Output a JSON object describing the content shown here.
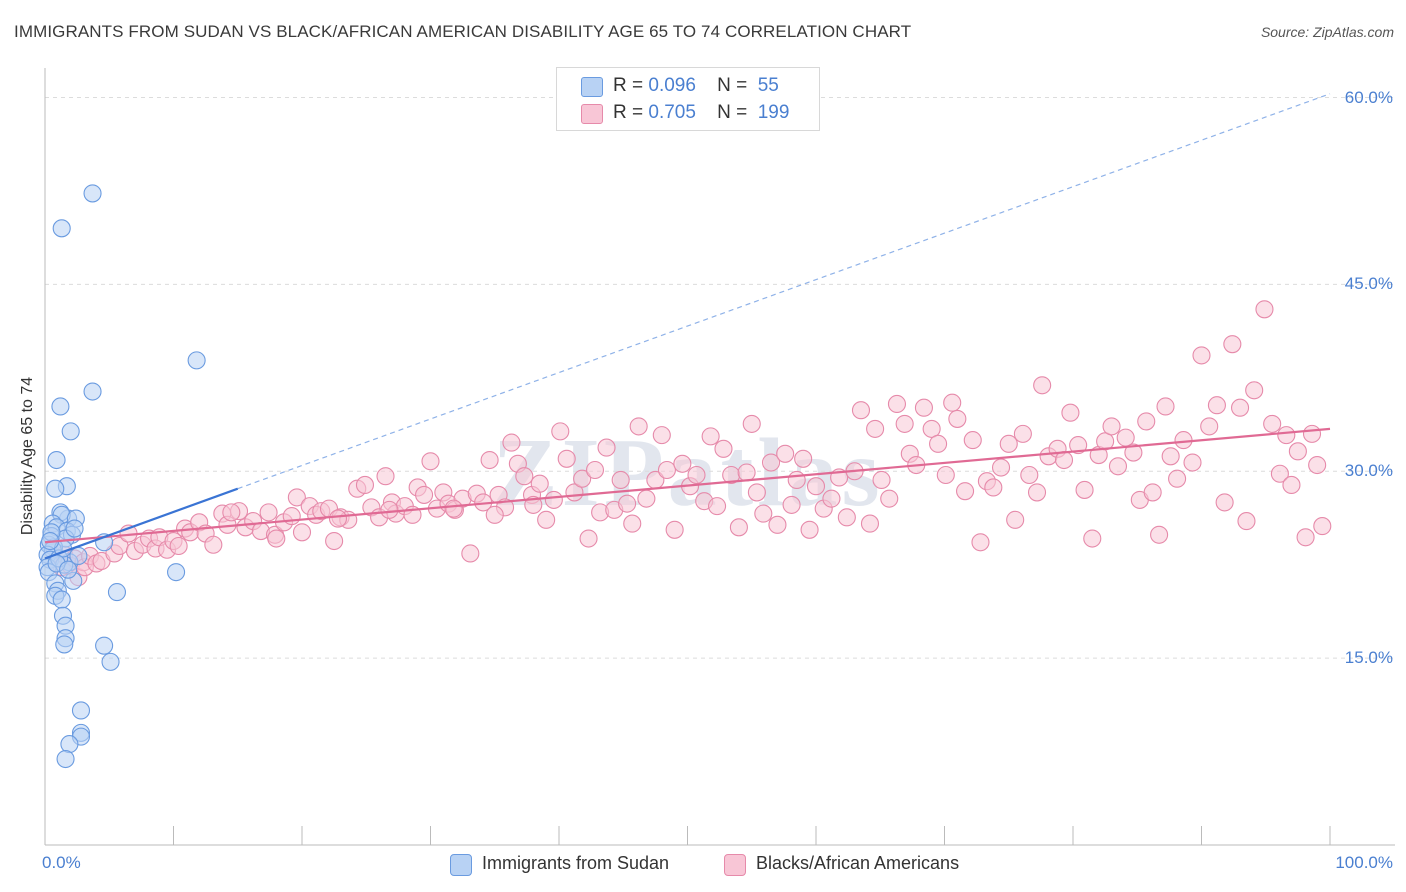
{
  "title": "IMMIGRANTS FROM SUDAN VS BLACK/AFRICAN AMERICAN DISABILITY AGE 65 TO 74 CORRELATION CHART",
  "source": "Source: ZipAtlas.com",
  "watermark": "ZIPatlas",
  "colors": {
    "blue_fill": "#b8d2f4",
    "blue_stroke": "#6a9be0",
    "blue_line": "#3a74d4",
    "pink_fill": "#f8c6d6",
    "pink_stroke": "#e68aaa",
    "pink_line": "#e06a94",
    "tick_text": "#4a7fd0",
    "grid": "#dcdcdc"
  },
  "legend": {
    "rows": [
      {
        "r_label": "R =",
        "r_value": "0.096",
        "n_label": "N =",
        "n_value": "55"
      },
      {
        "r_label": "R =",
        "r_value": "0.705",
        "n_label": "N =",
        "n_value": "199"
      }
    ]
  },
  "chart_data": {
    "type": "scatter",
    "title": "IMMIGRANTS FROM SUDAN VS BLACK/AFRICAN AMERICAN DISABILITY AGE 65 TO 74 CORRELATION CHART",
    "xlabel": "",
    "ylabel": "Disability Age 65 to 74",
    "xlim": [
      0,
      100
    ],
    "ylim": [
      0,
      62
    ],
    "x_tick_labels": [
      "0.0%",
      "100.0%"
    ],
    "y_ticks": [
      15,
      30,
      45,
      60
    ],
    "y_tick_labels": [
      "15.0%",
      "30.0%",
      "45.0%",
      "60.0%"
    ],
    "grid": true,
    "legend_position": "top-center",
    "series": [
      {
        "name": "Immigrants from Sudan",
        "color": "blue",
        "points": [
          [
            3.7,
            52.3
          ],
          [
            1.3,
            49.5
          ],
          [
            11.8,
            38.9
          ],
          [
            3.7,
            36.4
          ],
          [
            1.2,
            35.2
          ],
          [
            2.0,
            33.2
          ],
          [
            0.9,
            30.9
          ],
          [
            1.7,
            28.8
          ],
          [
            0.8,
            28.6
          ],
          [
            1.8,
            26.2
          ],
          [
            1.2,
            26.7
          ],
          [
            1.3,
            26.5
          ],
          [
            2.4,
            26.2
          ],
          [
            0.6,
            25.8
          ],
          [
            0.9,
            25.5
          ],
          [
            1.7,
            25.2
          ],
          [
            2.1,
            24.9
          ],
          [
            0.5,
            24.8
          ],
          [
            1.6,
            24.6
          ],
          [
            4.6,
            24.3
          ],
          [
            0.3,
            24.1
          ],
          [
            0.7,
            23.9
          ],
          [
            0.6,
            23.7
          ],
          [
            0.2,
            23.3
          ],
          [
            0.4,
            22.9
          ],
          [
            1.9,
            22.7
          ],
          [
            1.5,
            22.5
          ],
          [
            0.2,
            22.3
          ],
          [
            0.3,
            21.9
          ],
          [
            10.2,
            21.9
          ],
          [
            2.2,
            21.2
          ],
          [
            0.8,
            21.0
          ],
          [
            1.0,
            20.4
          ],
          [
            5.6,
            20.3
          ],
          [
            0.8,
            20.0
          ],
          [
            1.3,
            19.7
          ],
          [
            1.4,
            18.4
          ],
          [
            1.6,
            17.6
          ],
          [
            1.6,
            16.6
          ],
          [
            1.5,
            16.1
          ],
          [
            4.6,
            16.0
          ],
          [
            5.1,
            14.7
          ],
          [
            2.8,
            10.8
          ],
          [
            2.8,
            9.0
          ],
          [
            2.8,
            8.7
          ],
          [
            1.9,
            8.1
          ],
          [
            1.6,
            6.9
          ],
          [
            1.1,
            23.0
          ],
          [
            0.5,
            25.1
          ],
          [
            1.4,
            23.8
          ],
          [
            2.6,
            23.2
          ],
          [
            0.9,
            22.6
          ],
          [
            0.4,
            24.4
          ],
          [
            1.8,
            22.1
          ],
          [
            2.3,
            25.4
          ]
        ],
        "trend": {
          "x": [
            0,
            15
          ],
          "y": [
            23.0,
            28.6
          ]
        },
        "trend_extended": {
          "x": [
            15,
            100
          ],
          "y": [
            28.6,
            60.3
          ]
        }
      },
      {
        "name": "Blacks/African Americans",
        "color": "pink",
        "points": [
          [
            1.3,
            22.3
          ],
          [
            1.5,
            23.3
          ],
          [
            2.0,
            22.4
          ],
          [
            2.3,
            23.0
          ],
          [
            2.6,
            21.5
          ],
          [
            3.0,
            22.7
          ],
          [
            3.1,
            22.3
          ],
          [
            3.5,
            23.2
          ],
          [
            4.0,
            22.6
          ],
          [
            4.4,
            22.8
          ],
          [
            5.4,
            23.4
          ],
          [
            5.8,
            24.0
          ],
          [
            6.5,
            25.0
          ],
          [
            7.0,
            23.6
          ],
          [
            7.6,
            24.1
          ],
          [
            8.1,
            24.6
          ],
          [
            8.6,
            23.8
          ],
          [
            8.9,
            24.7
          ],
          [
            9.5,
            23.7
          ],
          [
            10.0,
            24.4
          ],
          [
            10.4,
            24.0
          ],
          [
            10.9,
            25.4
          ],
          [
            11.3,
            25.1
          ],
          [
            12.0,
            25.9
          ],
          [
            12.5,
            25.0
          ],
          [
            13.1,
            24.1
          ],
          [
            13.8,
            26.6
          ],
          [
            14.2,
            25.7
          ],
          [
            15.1,
            26.8
          ],
          [
            15.6,
            25.5
          ],
          [
            16.2,
            26.0
          ],
          [
            16.8,
            25.2
          ],
          [
            17.4,
            26.7
          ],
          [
            17.9,
            24.9
          ],
          [
            18.6,
            25.9
          ],
          [
            19.2,
            26.4
          ],
          [
            19.6,
            27.9
          ],
          [
            20.0,
            25.1
          ],
          [
            20.6,
            27.2
          ],
          [
            21.1,
            26.5
          ],
          [
            21.5,
            26.8
          ],
          [
            22.1,
            27.0
          ],
          [
            22.5,
            24.4
          ],
          [
            23.0,
            26.3
          ],
          [
            23.6,
            26.1
          ],
          [
            24.3,
            28.6
          ],
          [
            24.9,
            28.9
          ],
          [
            25.4,
            27.1
          ],
          [
            26.0,
            26.3
          ],
          [
            26.5,
            29.6
          ],
          [
            27.0,
            27.5
          ],
          [
            27.3,
            26.6
          ],
          [
            28.0,
            27.2
          ],
          [
            28.6,
            26.5
          ],
          [
            29.0,
            28.7
          ],
          [
            29.5,
            28.1
          ],
          [
            30.0,
            30.8
          ],
          [
            30.5,
            27.0
          ],
          [
            31.0,
            28.3
          ],
          [
            31.4,
            27.4
          ],
          [
            31.9,
            26.9
          ],
          [
            32.5,
            27.8
          ],
          [
            33.1,
            23.4
          ],
          [
            33.6,
            28.2
          ],
          [
            34.1,
            27.5
          ],
          [
            34.6,
            30.9
          ],
          [
            35.3,
            28.1
          ],
          [
            35.8,
            27.1
          ],
          [
            36.3,
            32.3
          ],
          [
            36.8,
            30.6
          ],
          [
            37.3,
            29.6
          ],
          [
            37.9,
            28.1
          ],
          [
            38.5,
            29.0
          ],
          [
            39.0,
            26.1
          ],
          [
            39.6,
            27.7
          ],
          [
            40.1,
            33.2
          ],
          [
            40.6,
            31.0
          ],
          [
            41.2,
            28.3
          ],
          [
            41.8,
            29.4
          ],
          [
            42.3,
            24.6
          ],
          [
            42.8,
            30.1
          ],
          [
            43.2,
            26.7
          ],
          [
            43.7,
            31.9
          ],
          [
            44.3,
            26.9
          ],
          [
            44.8,
            29.3
          ],
          [
            45.3,
            27.4
          ],
          [
            45.7,
            25.8
          ],
          [
            46.2,
            33.6
          ],
          [
            46.8,
            27.8
          ],
          [
            47.5,
            29.3
          ],
          [
            48.0,
            32.9
          ],
          [
            48.4,
            30.1
          ],
          [
            49.0,
            25.3
          ],
          [
            49.6,
            30.6
          ],
          [
            50.2,
            28.8
          ],
          [
            50.7,
            29.7
          ],
          [
            51.3,
            27.6
          ],
          [
            51.8,
            32.8
          ],
          [
            52.3,
            27.2
          ],
          [
            52.8,
            31.8
          ],
          [
            53.4,
            29.7
          ],
          [
            54.0,
            25.5
          ],
          [
            54.6,
            29.9
          ],
          [
            55.0,
            33.8
          ],
          [
            55.4,
            28.3
          ],
          [
            55.9,
            26.6
          ],
          [
            56.5,
            30.7
          ],
          [
            57.0,
            25.7
          ],
          [
            57.6,
            31.4
          ],
          [
            58.1,
            27.3
          ],
          [
            58.5,
            29.3
          ],
          [
            59.0,
            31.0
          ],
          [
            59.5,
            25.3
          ],
          [
            60.0,
            28.8
          ],
          [
            60.6,
            27.0
          ],
          [
            61.2,
            27.8
          ],
          [
            61.8,
            29.5
          ],
          [
            62.4,
            26.3
          ],
          [
            63.0,
            30.0
          ],
          [
            63.5,
            34.9
          ],
          [
            64.2,
            25.8
          ],
          [
            64.6,
            33.4
          ],
          [
            65.1,
            29.3
          ],
          [
            65.7,
            27.8
          ],
          [
            66.3,
            35.4
          ],
          [
            66.9,
            33.8
          ],
          [
            67.3,
            31.4
          ],
          [
            67.8,
            30.5
          ],
          [
            68.4,
            35.1
          ],
          [
            69.0,
            33.4
          ],
          [
            69.5,
            32.2
          ],
          [
            70.1,
            29.7
          ],
          [
            70.6,
            35.5
          ],
          [
            71.0,
            34.2
          ],
          [
            71.6,
            28.4
          ],
          [
            72.2,
            32.5
          ],
          [
            72.8,
            24.3
          ],
          [
            73.3,
            29.2
          ],
          [
            73.8,
            28.7
          ],
          [
            74.4,
            30.3
          ],
          [
            75.0,
            32.2
          ],
          [
            75.5,
            26.1
          ],
          [
            76.1,
            33.0
          ],
          [
            76.6,
            29.7
          ],
          [
            77.2,
            28.3
          ],
          [
            77.6,
            36.9
          ],
          [
            78.1,
            31.2
          ],
          [
            78.8,
            31.8
          ],
          [
            79.3,
            30.9
          ],
          [
            79.8,
            34.7
          ],
          [
            80.4,
            32.1
          ],
          [
            80.9,
            28.5
          ],
          [
            81.5,
            24.6
          ],
          [
            82.0,
            31.3
          ],
          [
            82.5,
            32.4
          ],
          [
            83.0,
            33.6
          ],
          [
            83.5,
            30.4
          ],
          [
            84.1,
            32.7
          ],
          [
            84.7,
            31.5
          ],
          [
            85.2,
            27.7
          ],
          [
            85.7,
            34.0
          ],
          [
            86.2,
            28.3
          ],
          [
            86.7,
            24.9
          ],
          [
            87.2,
            35.2
          ],
          [
            87.6,
            31.2
          ],
          [
            88.1,
            29.4
          ],
          [
            88.6,
            32.5
          ],
          [
            89.3,
            30.7
          ],
          [
            90.0,
            39.3
          ],
          [
            90.6,
            33.6
          ],
          [
            91.2,
            35.3
          ],
          [
            91.8,
            27.5
          ],
          [
            92.4,
            40.2
          ],
          [
            93.0,
            35.1
          ],
          [
            93.5,
            26.0
          ],
          [
            94.1,
            36.5
          ],
          [
            94.9,
            43.0
          ],
          [
            95.5,
            33.8
          ],
          [
            96.1,
            29.8
          ],
          [
            96.6,
            32.9
          ],
          [
            97.0,
            28.9
          ],
          [
            97.5,
            31.6
          ],
          [
            98.1,
            24.7
          ],
          [
            98.6,
            33.0
          ],
          [
            99.0,
            30.5
          ],
          [
            99.4,
            25.6
          ],
          [
            14.5,
            26.7
          ],
          [
            18.0,
            24.6
          ],
          [
            22.8,
            26.2
          ],
          [
            26.8,
            26.9
          ],
          [
            31.8,
            27.0
          ],
          [
            35.0,
            26.5
          ],
          [
            38.0,
            27.3
          ]
        ],
        "trend": {
          "x": [
            0,
            100
          ],
          "y": [
            24.3,
            33.4
          ]
        }
      }
    ]
  }
}
